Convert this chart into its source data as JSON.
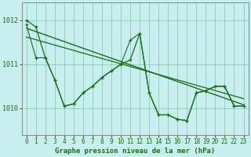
{
  "title": "Graphe pression niveau de la mer (hPa)",
  "bg_color": "#c8eef0",
  "grid_color": "#90c8b8",
  "line_color": "#1a6b1a",
  "spine_color": "#888888",
  "ylim": [
    1009.4,
    1012.4
  ],
  "yticks": [
    1010,
    1011,
    1012
  ],
  "xlim": [
    -0.5,
    23.5
  ],
  "xticks": [
    0,
    1,
    2,
    3,
    4,
    5,
    6,
    7,
    8,
    9,
    10,
    11,
    12,
    13,
    14,
    15,
    16,
    17,
    18,
    19,
    20,
    21,
    22,
    23
  ],
  "series1": [
    1012.0,
    1011.85,
    1011.15,
    1010.65,
    1010.05,
    1010.1,
    1010.35,
    1010.5,
    1010.7,
    1010.85,
    1011.0,
    1011.1,
    1011.7,
    1010.35,
    1009.85,
    1009.85,
    1009.75,
    1009.72,
    1010.35,
    1010.4,
    1010.5,
    1010.5,
    1010.05,
    1010.05
  ],
  "series2": [
    1011.9,
    1011.15,
    1011.15,
    1010.65,
    1010.05,
    1010.1,
    1010.35,
    1010.5,
    1010.7,
    1010.85,
    1011.0,
    1011.55,
    1011.7,
    1010.35,
    1009.85,
    1009.85,
    1009.75,
    1009.72,
    1010.35,
    1010.4,
    1010.5,
    1010.5,
    1010.05,
    1010.05
  ],
  "trend1": [
    1011.82,
    1010.08
  ],
  "trend1_x": [
    0,
    23
  ],
  "trend2": [
    1011.62,
    1010.22
  ],
  "trend2_x": [
    0,
    23
  ],
  "title_fontsize": 6.5,
  "ytick_fontsize": 6,
  "xtick_fontsize": 5.5
}
